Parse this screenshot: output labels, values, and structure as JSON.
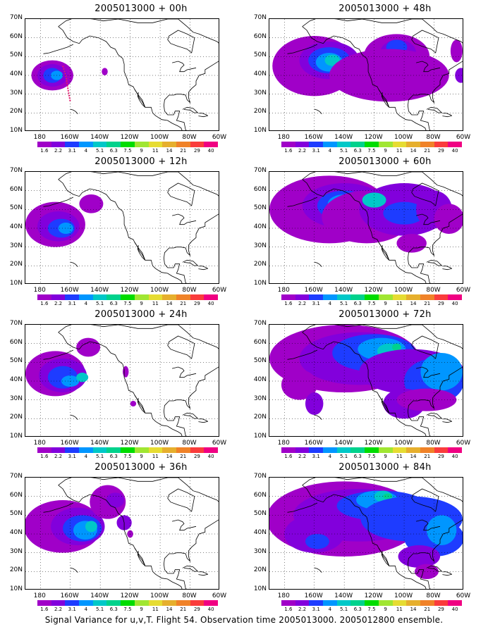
{
  "panels": [
    {
      "title": "2005013000 + 00h"
    },
    {
      "title": "2005013000 + 48h"
    },
    {
      "title": "2005013000 + 12h"
    },
    {
      "title": "2005013000 + 60h"
    },
    {
      "title": "2005013000 + 24h"
    },
    {
      "title": "2005013000 + 72h"
    },
    {
      "title": "2005013000 + 36h"
    },
    {
      "title": "2005013000 + 84h"
    }
  ],
  "y_ticks": [
    "70N",
    "60N",
    "50N",
    "40N",
    "30N",
    "20N",
    "10N"
  ],
  "x_ticks": [
    "180",
    "160W",
    "140W",
    "120W",
    "100W",
    "80W",
    "60W"
  ],
  "colorbar": {
    "labels": [
      "1.6",
      "2.2",
      "3.1",
      "4",
      "5.1",
      "6.3",
      "7.5",
      "9",
      "11",
      "14",
      "21",
      "29",
      "40"
    ],
    "colors": [
      "#a000c8",
      "#8200dc",
      "#1e3cff",
      "#0096ff",
      "#00c8c8",
      "#00d28c",
      "#00dc00",
      "#a0e632",
      "#e6dc32",
      "#e6af2d",
      "#f08228",
      "#fa3c3c",
      "#f00082"
    ]
  },
  "caption": "Signal Variance for u,v,T. Flight 54. Observation time 2005013000. 2005012800 ensemble."
}
